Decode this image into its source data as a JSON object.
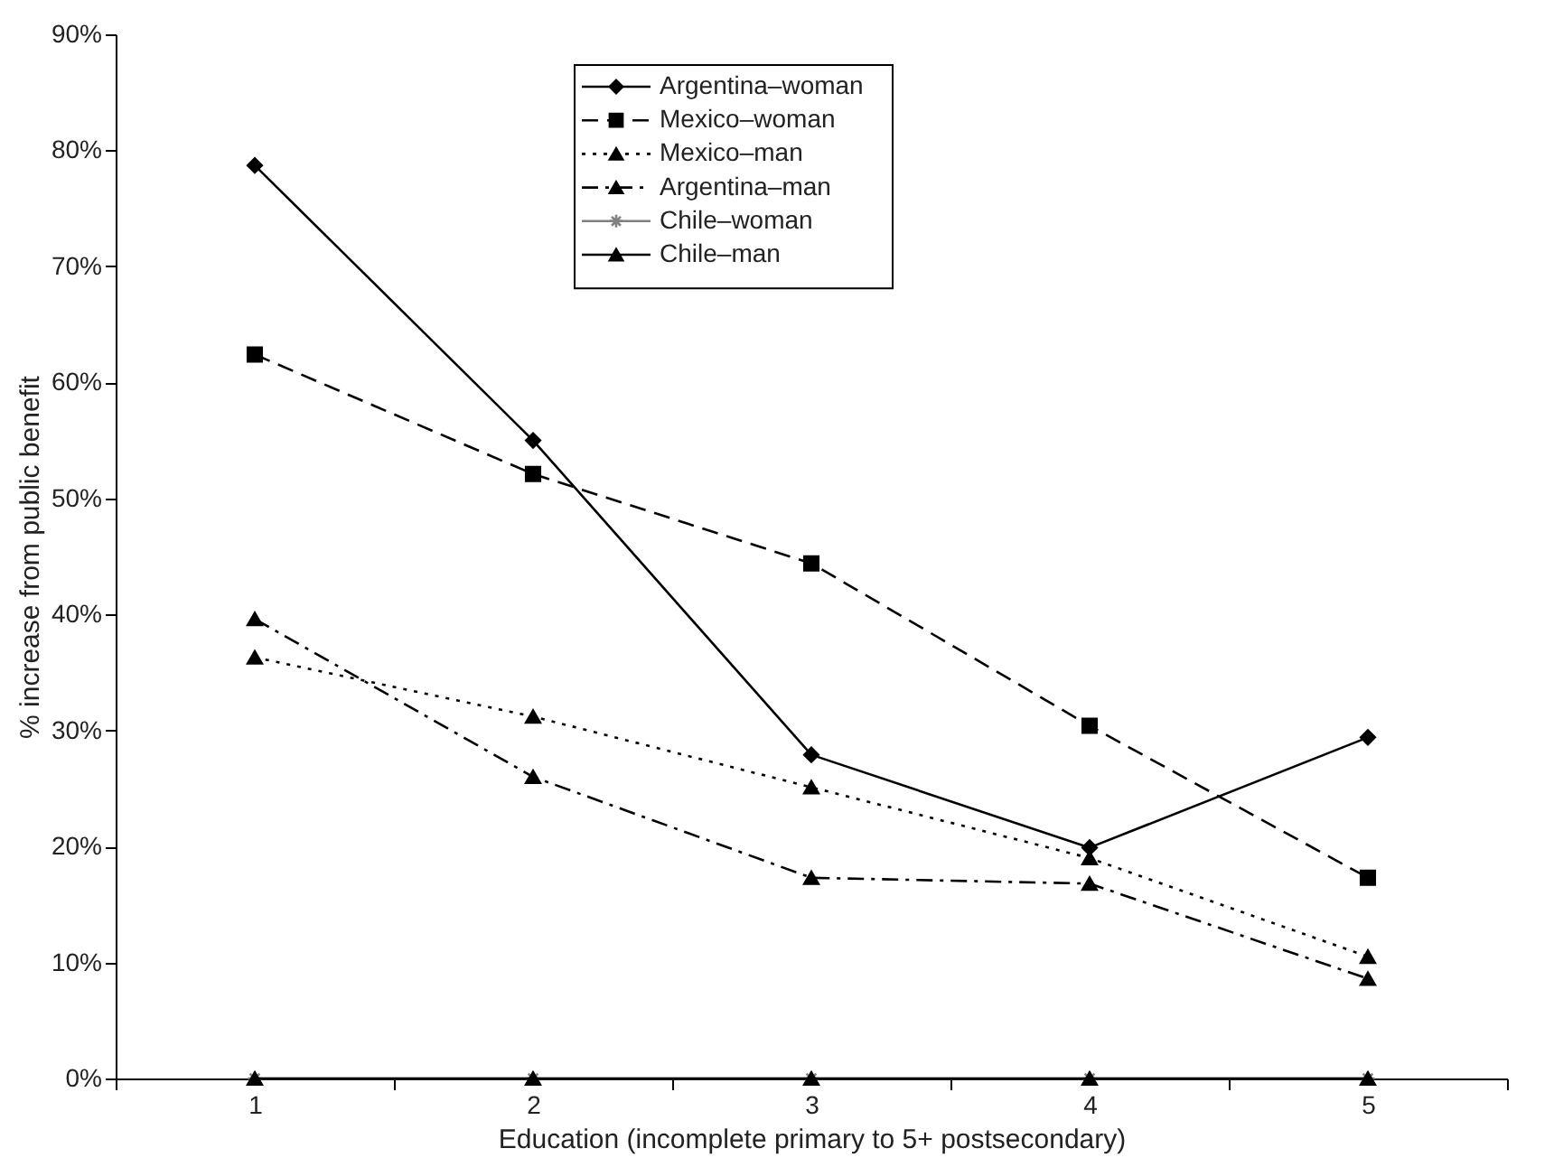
{
  "chart_data": {
    "type": "line",
    "xlabel": "Education (incomplete primary to 5+ postsecondary)",
    "ylabel": "% increase from public benefit",
    "categories": [
      "1",
      "2",
      "3",
      "4",
      "5"
    ],
    "ylim": [
      0,
      90
    ],
    "yticks": [
      {
        "value": 0,
        "label": "0%"
      },
      {
        "value": 10,
        "label": "10%"
      },
      {
        "value": 20,
        "label": "20%"
      },
      {
        "value": 30,
        "label": "30%"
      },
      {
        "value": 40,
        "label": "40%"
      },
      {
        "value": 50,
        "label": "50%"
      },
      {
        "value": 60,
        "label": "60%"
      },
      {
        "value": 70,
        "label": "70%"
      },
      {
        "value": 80,
        "label": "80%"
      },
      {
        "value": 90,
        "label": "90%"
      }
    ],
    "grid": false,
    "legend": "top",
    "series": [
      {
        "name": "Argentina–woman",
        "color": "#000000",
        "marker": "diamond",
        "line_style": "solid",
        "values": [
          78.7,
          55.0,
          27.9,
          19.9,
          29.4
        ]
      },
      {
        "name": "Mexico–woman",
        "color": "#000000",
        "marker": "square",
        "line_style": "dashed",
        "values": [
          62.4,
          52.1,
          44.4,
          30.4,
          17.3
        ]
      },
      {
        "name": "Mexico–man",
        "color": "#000000",
        "marker": "triangle",
        "line_style": "dotted",
        "values": [
          36.3,
          31.2,
          25.1,
          19.0,
          10.5
        ]
      },
      {
        "name": "Argentina–man",
        "color": "#000000",
        "marker": "triangle",
        "line_style": "dashdot",
        "values": [
          39.6,
          26.0,
          17.3,
          16.8,
          8.6
        ]
      },
      {
        "name": "Chile–woman",
        "color": "#808080",
        "marker": "cross",
        "line_style": "solid",
        "values": [
          0,
          0,
          0,
          0,
          0
        ]
      },
      {
        "name": "Chile–man",
        "color": "#000000",
        "marker": "triangle",
        "line_style": "solid",
        "values": [
          0,
          0,
          0,
          0,
          0
        ]
      }
    ]
  }
}
